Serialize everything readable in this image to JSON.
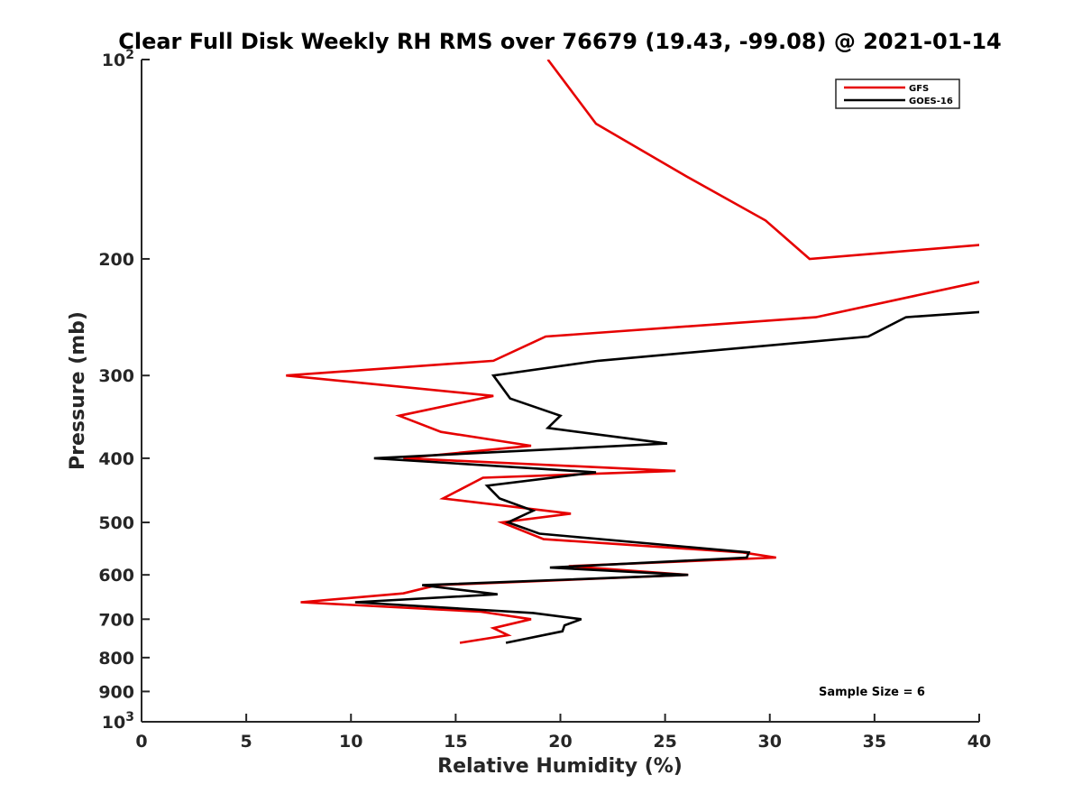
{
  "chart_data": {
    "type": "line",
    "title": "Clear Full Disk Weekly RH RMS over 76679 (19.43, -99.08) @ 2021-01-14",
    "xlabel": "Relative Humidity (%)",
    "ylabel": "Pressure (mb)",
    "xlim": [
      0,
      40
    ],
    "ylim": [
      100,
      1000
    ],
    "yscale": "log",
    "yreversed": true,
    "grid": false,
    "legend_position": "top-right",
    "x_ticks": [
      0,
      5,
      10,
      15,
      20,
      25,
      30,
      35,
      40
    ],
    "x_tick_labels": [
      "0",
      "5",
      "10",
      "15",
      "20",
      "25",
      "30",
      "35",
      "40"
    ],
    "y_ticks": [
      {
        "value": 100,
        "label": "10",
        "sup": "2"
      },
      {
        "value": 200,
        "label": "200",
        "sup": ""
      },
      {
        "value": 300,
        "label": "300",
        "sup": ""
      },
      {
        "value": 400,
        "label": "400",
        "sup": ""
      },
      {
        "value": 500,
        "label": "500",
        "sup": ""
      },
      {
        "value": 600,
        "label": "600",
        "sup": ""
      },
      {
        "value": 700,
        "label": "700",
        "sup": ""
      },
      {
        "value": 800,
        "label": "800",
        "sup": ""
      },
      {
        "value": 900,
        "label": "900",
        "sup": ""
      },
      {
        "value": 1000,
        "label": "10",
        "sup": "3"
      }
    ],
    "annotation": "Sample Size = 6",
    "series": [
      {
        "name": "GFS",
        "color": "#e60000",
        "points": [
          [
            19.4,
            100
          ],
          [
            21.7,
            125
          ],
          [
            26.0,
            150
          ],
          [
            29.8,
            175
          ],
          [
            31.9,
            200
          ],
          [
            40.5,
            190
          ],
          [
            40.5,
            215
          ],
          [
            32.2,
            245
          ],
          [
            19.3,
            262
          ],
          [
            16.8,
            285
          ],
          [
            6.9,
            300
          ],
          [
            16.8,
            322
          ],
          [
            12.3,
            345
          ],
          [
            14.3,
            365
          ],
          [
            18.6,
            383
          ],
          [
            12.5,
            400
          ],
          [
            25.5,
            418
          ],
          [
            16.3,
            428
          ],
          [
            14.4,
            460
          ],
          [
            20.5,
            485
          ],
          [
            17.2,
            500
          ],
          [
            19.2,
            530
          ],
          [
            28.7,
            555
          ],
          [
            30.3,
            565
          ],
          [
            20.4,
            582
          ],
          [
            26.1,
            600
          ],
          [
            14.1,
            622
          ],
          [
            12.5,
            640
          ],
          [
            7.6,
            660
          ],
          [
            16.2,
            682
          ],
          [
            18.6,
            700
          ],
          [
            16.8,
            722
          ],
          [
            17.5,
            740
          ],
          [
            15.2,
            760
          ]
        ]
      },
      {
        "name": "GOES-16",
        "color": "#000000",
        "points": [
          [
            40.5,
            240
          ],
          [
            36.5,
            245
          ],
          [
            34.7,
            262
          ],
          [
            21.8,
            285
          ],
          [
            16.8,
            300
          ],
          [
            17.6,
            325
          ],
          [
            20.0,
            345
          ],
          [
            19.4,
            360
          ],
          [
            25.1,
            380
          ],
          [
            11.1,
            400
          ],
          [
            21.7,
            420
          ],
          [
            16.5,
            440
          ],
          [
            17.1,
            460
          ],
          [
            18.7,
            480
          ],
          [
            17.5,
            500
          ],
          [
            19.0,
            520
          ],
          [
            29.0,
            555
          ],
          [
            28.9,
            565
          ],
          [
            19.5,
            585
          ],
          [
            26.1,
            600
          ],
          [
            13.4,
            622
          ],
          [
            17.0,
            642
          ],
          [
            10.2,
            660
          ],
          [
            18.7,
            685
          ],
          [
            21.0,
            700
          ],
          [
            20.2,
            715
          ],
          [
            20.1,
            730
          ],
          [
            17.4,
            760
          ]
        ]
      }
    ]
  }
}
